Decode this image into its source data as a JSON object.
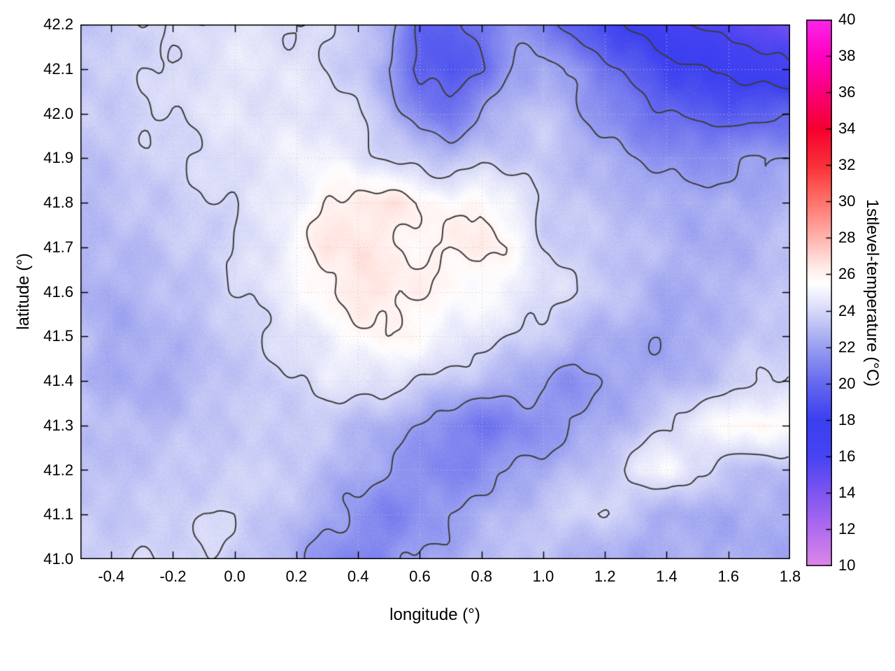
{
  "chart_data": {
    "type": "heatmap",
    "title": "",
    "xlabel": "longitude (°)",
    "ylabel": "latitude (°)",
    "colorbar_label": "1stlevel-temperature (°C)",
    "x_range": [
      -0.5,
      1.8
    ],
    "y_range": [
      41.0,
      42.2
    ],
    "cb_range": [
      10,
      40
    ],
    "x_ticks": [
      "-0.4",
      "-0.2",
      "0.0",
      "0.2",
      "0.4",
      "0.6",
      "0.8",
      "1.0",
      "1.2",
      "1.4",
      "1.6",
      "1.8"
    ],
    "x_tick_values": [
      -0.4,
      -0.2,
      0.0,
      0.2,
      0.4,
      0.6,
      0.8,
      1.0,
      1.2,
      1.4,
      1.6,
      1.8
    ],
    "y_ticks": [
      "41.0",
      "41.1",
      "41.2",
      "41.3",
      "41.4",
      "41.5",
      "41.6",
      "41.7",
      "41.8",
      "41.9",
      "42.0",
      "42.1",
      "42.2"
    ],
    "y_tick_values": [
      41.0,
      41.1,
      41.2,
      41.3,
      41.4,
      41.5,
      41.6,
      41.7,
      41.8,
      41.9,
      42.0,
      42.1,
      42.2
    ],
    "cb_ticks": [
      "10",
      "12",
      "14",
      "16",
      "18",
      "20",
      "22",
      "24",
      "26",
      "28",
      "30",
      "32",
      "34",
      "36",
      "38",
      "40"
    ],
    "cb_tick_values": [
      10,
      12,
      14,
      16,
      18,
      20,
      22,
      24,
      26,
      28,
      30,
      32,
      34,
      36,
      38,
      40
    ],
    "contour_levels": [
      16,
      18,
      20,
      22,
      24,
      26
    ],
    "grid": {
      "lon_start": -0.5,
      "lon_step": 0.1,
      "lat_start": 42.2,
      "lat_step": -0.1,
      "values": [
        [
          23.5,
          23.5,
          24,
          24,
          24,
          24.5,
          24.5,
          24,
          24,
          23.5,
          22.5,
          20,
          19.5,
          20.5,
          21.5,
          21,
          19.5,
          18.5,
          17.5,
          16.5,
          16,
          15.5,
          15,
          14
        ],
        [
          23.5,
          23.5,
          24,
          24,
          24.5,
          24.5,
          24.5,
          24.5,
          24,
          23.5,
          22,
          19.5,
          19,
          20,
          22,
          22.5,
          21.5,
          20.5,
          19.5,
          18.5,
          18,
          17.5,
          17,
          16.5
        ],
        [
          23.5,
          23.5,
          24,
          24,
          24.5,
          24.5,
          24.5,
          24.5,
          24.5,
          24,
          23,
          21,
          20.5,
          22,
          23,
          23.5,
          22.5,
          21.5,
          20.5,
          20,
          19.5,
          19.5,
          19.5,
          20
        ],
        [
          23,
          23.5,
          23.5,
          24,
          24,
          24.5,
          24.5,
          25,
          25,
          24.5,
          24,
          23.5,
          23,
          23.5,
          23.5,
          23.5,
          23,
          22.5,
          22,
          21.5,
          21.5,
          21.5,
          22,
          22
        ],
        [
          23,
          23,
          23.5,
          23.5,
          24,
          24,
          24.5,
          25,
          26,
          26.5,
          26.5,
          26,
          25.5,
          26,
          25,
          23.5,
          23.5,
          23,
          23,
          22.5,
          22.5,
          22.5,
          22.5,
          23
        ],
        [
          23,
          23,
          23,
          23.5,
          23.5,
          24,
          24.5,
          25.5,
          26.5,
          26.5,
          26,
          26,
          26,
          26.5,
          25.5,
          24,
          23.5,
          23.5,
          23,
          23,
          22.5,
          22.5,
          23,
          23
        ],
        [
          22.5,
          22.5,
          23,
          23,
          23.5,
          24,
          24.5,
          25,
          26,
          26.5,
          26.5,
          26,
          25.5,
          25.5,
          25,
          24.5,
          24,
          23.5,
          23,
          22.5,
          22.5,
          23,
          23,
          23.5
        ],
        [
          23,
          22.5,
          22.5,
          23,
          23,
          23.5,
          24,
          24.5,
          25,
          25.5,
          26,
          25.5,
          25,
          24.5,
          24,
          23.5,
          23,
          22.5,
          22.5,
          22,
          22.5,
          23,
          23.5,
          23.5
        ],
        [
          23,
          22.5,
          22.5,
          22.5,
          23,
          23.5,
          23.5,
          24,
          24.5,
          24.5,
          24.5,
          24,
          23.5,
          23,
          22.5,
          22,
          21.5,
          22,
          22.5,
          22.5,
          23,
          23.5,
          24,
          24
        ],
        [
          23.5,
          23,
          23,
          23,
          23.5,
          23.5,
          23.5,
          23.5,
          23.5,
          23,
          22.5,
          22,
          21,
          20.5,
          21,
          21.5,
          22,
          22.5,
          23,
          24,
          25,
          25.5,
          26,
          25.5
        ],
        [
          23,
          23,
          23.5,
          23.5,
          23.5,
          23.5,
          24,
          23.5,
          23,
          22.5,
          22,
          21.5,
          21,
          21.5,
          22,
          22.5,
          23,
          23.5,
          24.5,
          25.5,
          24,
          23.5,
          23,
          23
        ],
        [
          23.5,
          23.5,
          23.5,
          23.5,
          24,
          24,
          23.5,
          23,
          22.5,
          21.5,
          21,
          21.5,
          22,
          22.5,
          23,
          23.5,
          24,
          24,
          23,
          22.5,
          22.5,
          22.5,
          22.5,
          22.5
        ],
        [
          23.5,
          23.5,
          24,
          24,
          24,
          23.5,
          23,
          22.5,
          21.5,
          21,
          21.5,
          22,
          22.5,
          23,
          23.5,
          23,
          22.5,
          22.5,
          22.5,
          22.5,
          22.5,
          22.5,
          22.5,
          22.5
        ]
      ]
    },
    "palette": [
      [
        10,
        "#dd87e8"
      ],
      [
        12,
        "#b06cee"
      ],
      [
        14,
        "#7e55f0"
      ],
      [
        16,
        "#4743f2"
      ],
      [
        18,
        "#3b3ff0"
      ],
      [
        20,
        "#6468ee"
      ],
      [
        22,
        "#989ef0"
      ],
      [
        24,
        "#d6d8f8"
      ],
      [
        25.5,
        "#ffffff"
      ],
      [
        26.5,
        "#ffe8e4"
      ],
      [
        28,
        "#ffb4ad"
      ],
      [
        30,
        "#ff736b"
      ],
      [
        32,
        "#f93038"
      ],
      [
        34,
        "#f5002e"
      ],
      [
        36,
        "#f90078"
      ],
      [
        38,
        "#ff00c0"
      ],
      [
        40,
        "#f926e8"
      ]
    ],
    "colors": {
      "contour": "#3c3c3c",
      "grid_lines": "#c8c8c8",
      "axis": "#000000",
      "background": "#ffffff"
    }
  }
}
